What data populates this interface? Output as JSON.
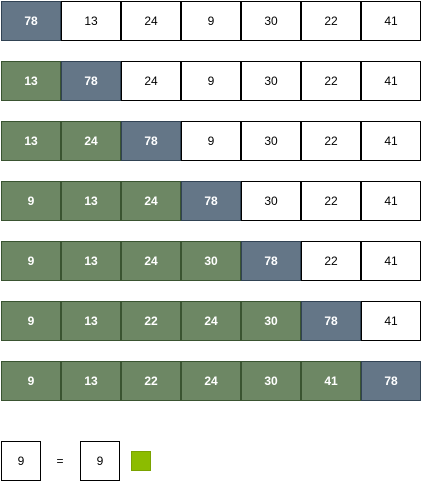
{
  "colors": {
    "sorted": "#6d8764",
    "current": "#647687",
    "plain": "#ffffff",
    "match": "#8cbc00"
  },
  "rows": [
    {
      "cells": [
        {
          "v": "78",
          "s": "current"
        },
        {
          "v": "13",
          "s": "plain"
        },
        {
          "v": "24",
          "s": "plain"
        },
        {
          "v": "9",
          "s": "plain"
        },
        {
          "v": "30",
          "s": "plain"
        },
        {
          "v": "22",
          "s": "plain"
        },
        {
          "v": "41",
          "s": "plain"
        }
      ]
    },
    {
      "cells": [
        {
          "v": "13",
          "s": "sorted"
        },
        {
          "v": "78",
          "s": "current"
        },
        {
          "v": "24",
          "s": "plain"
        },
        {
          "v": "9",
          "s": "plain"
        },
        {
          "v": "30",
          "s": "plain"
        },
        {
          "v": "22",
          "s": "plain"
        },
        {
          "v": "41",
          "s": "plain"
        }
      ]
    },
    {
      "cells": [
        {
          "v": "13",
          "s": "sorted"
        },
        {
          "v": "24",
          "s": "sorted"
        },
        {
          "v": "78",
          "s": "current"
        },
        {
          "v": "9",
          "s": "plain"
        },
        {
          "v": "30",
          "s": "plain"
        },
        {
          "v": "22",
          "s": "plain"
        },
        {
          "v": "41",
          "s": "plain"
        }
      ]
    },
    {
      "cells": [
        {
          "v": "9",
          "s": "sorted"
        },
        {
          "v": "13",
          "s": "sorted"
        },
        {
          "v": "24",
          "s": "sorted"
        },
        {
          "v": "78",
          "s": "current"
        },
        {
          "v": "30",
          "s": "plain"
        },
        {
          "v": "22",
          "s": "plain"
        },
        {
          "v": "41",
          "s": "plain"
        }
      ]
    },
    {
      "cells": [
        {
          "v": "9",
          "s": "sorted"
        },
        {
          "v": "13",
          "s": "sorted"
        },
        {
          "v": "24",
          "s": "sorted"
        },
        {
          "v": "30",
          "s": "sorted"
        },
        {
          "v": "78",
          "s": "current"
        },
        {
          "v": "22",
          "s": "plain"
        },
        {
          "v": "41",
          "s": "plain"
        }
      ]
    },
    {
      "cells": [
        {
          "v": "9",
          "s": "sorted"
        },
        {
          "v": "13",
          "s": "sorted"
        },
        {
          "v": "22",
          "s": "sorted"
        },
        {
          "v": "24",
          "s": "sorted"
        },
        {
          "v": "30",
          "s": "sorted"
        },
        {
          "v": "78",
          "s": "current"
        },
        {
          "v": "41",
          "s": "plain"
        }
      ]
    },
    {
      "cells": [
        {
          "v": "9",
          "s": "sorted"
        },
        {
          "v": "13",
          "s": "sorted"
        },
        {
          "v": "22",
          "s": "sorted"
        },
        {
          "v": "24",
          "s": "sorted"
        },
        {
          "v": "30",
          "s": "sorted"
        },
        {
          "v": "41",
          "s": "sorted"
        },
        {
          "v": "78",
          "s": "current"
        }
      ]
    }
  ],
  "legend": {
    "left_value": "9",
    "operator": "=",
    "right_value": "9"
  }
}
